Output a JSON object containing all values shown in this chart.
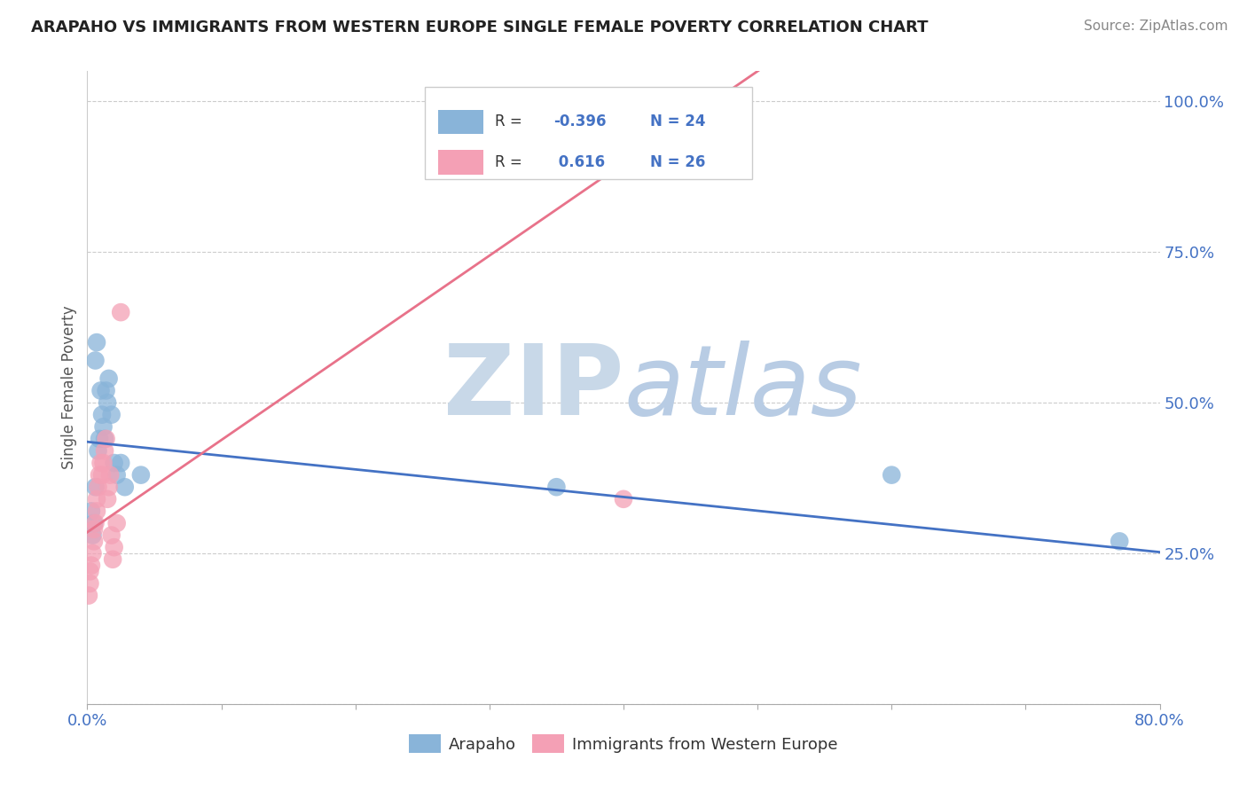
{
  "title": "ARAPAHO VS IMMIGRANTS FROM WESTERN EUROPE SINGLE FEMALE POVERTY CORRELATION CHART",
  "source": "Source: ZipAtlas.com",
  "ylabel": "Single Female Poverty",
  "xlim": [
    0.0,
    0.8
  ],
  "ylim": [
    0.0,
    1.05
  ],
  "arapaho_R": -0.396,
  "arapaho_N": 24,
  "immigrants_R": 0.616,
  "immigrants_N": 26,
  "arapaho_color": "#89b4d9",
  "immigrants_color": "#f4a0b5",
  "arapaho_line_color": "#4472c4",
  "immigrants_line_color": "#e8728a",
  "watermark_zip_color": "#c8d8e8",
  "watermark_atlas_color": "#b8cce4",
  "legend_blue_label": "Arapaho",
  "legend_pink_label": "Immigrants from Western Europe",
  "background_color": "#ffffff",
  "grid_color": "#cccccc",
  "tick_color": "#4472c4",
  "arapaho_x": [
    0.003,
    0.004,
    0.005,
    0.006,
    0.006,
    0.007,
    0.008,
    0.009,
    0.01,
    0.011,
    0.012,
    0.013,
    0.014,
    0.015,
    0.016,
    0.018,
    0.02,
    0.022,
    0.025,
    0.028,
    0.04,
    0.35,
    0.6,
    0.77
  ],
  "arapaho_y": [
    0.32,
    0.28,
    0.3,
    0.36,
    0.57,
    0.6,
    0.42,
    0.44,
    0.52,
    0.48,
    0.46,
    0.44,
    0.52,
    0.5,
    0.54,
    0.48,
    0.4,
    0.38,
    0.4,
    0.36,
    0.38,
    0.36,
    0.38,
    0.27
  ],
  "immigrants_x": [
    0.001,
    0.002,
    0.002,
    0.003,
    0.004,
    0.005,
    0.005,
    0.006,
    0.007,
    0.007,
    0.008,
    0.009,
    0.01,
    0.011,
    0.012,
    0.013,
    0.014,
    0.015,
    0.016,
    0.017,
    0.018,
    0.019,
    0.02,
    0.022,
    0.025,
    0.4
  ],
  "immigrants_y": [
    0.18,
    0.2,
    0.22,
    0.23,
    0.25,
    0.27,
    0.29,
    0.3,
    0.32,
    0.34,
    0.36,
    0.38,
    0.4,
    0.38,
    0.4,
    0.42,
    0.44,
    0.34,
    0.36,
    0.38,
    0.28,
    0.24,
    0.26,
    0.3,
    0.65,
    0.34
  ],
  "blue_line_x0": 0.0,
  "blue_line_y0": 0.435,
  "blue_line_x1": 0.8,
  "blue_line_y1": 0.252,
  "pink_line_x0": 0.0,
  "pink_line_y0": 0.285,
  "pink_line_x1": 0.5,
  "pink_line_y1": 1.05
}
